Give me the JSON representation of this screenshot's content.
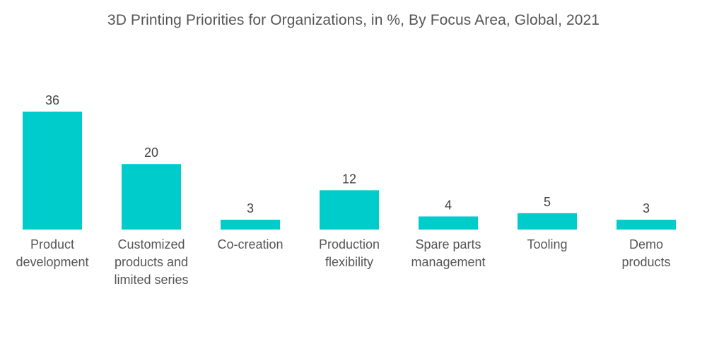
{
  "chart_data": {
    "type": "bar",
    "title": "3D Printing Priorities for Organizations, in %, By Focus Area, Global, 2021",
    "xlabel": "",
    "ylabel": "",
    "ylim": [
      0,
      36
    ],
    "grid": false,
    "legend": "none",
    "bar_color": "#00CCCC",
    "categories": [
      [
        "Product",
        "development"
      ],
      [
        "Customized",
        "products and",
        "limited series"
      ],
      [
        "Co-creation"
      ],
      [
        "Production",
        "flexibility"
      ],
      [
        "Spare parts",
        "management"
      ],
      [
        "Tooling"
      ],
      [
        "Demo",
        "products"
      ]
    ],
    "values": [
      36,
      20,
      3,
      12,
      4,
      5,
      3
    ],
    "data_labels": [
      "36",
      "20",
      "3",
      "12",
      "4",
      "5",
      "3"
    ]
  }
}
